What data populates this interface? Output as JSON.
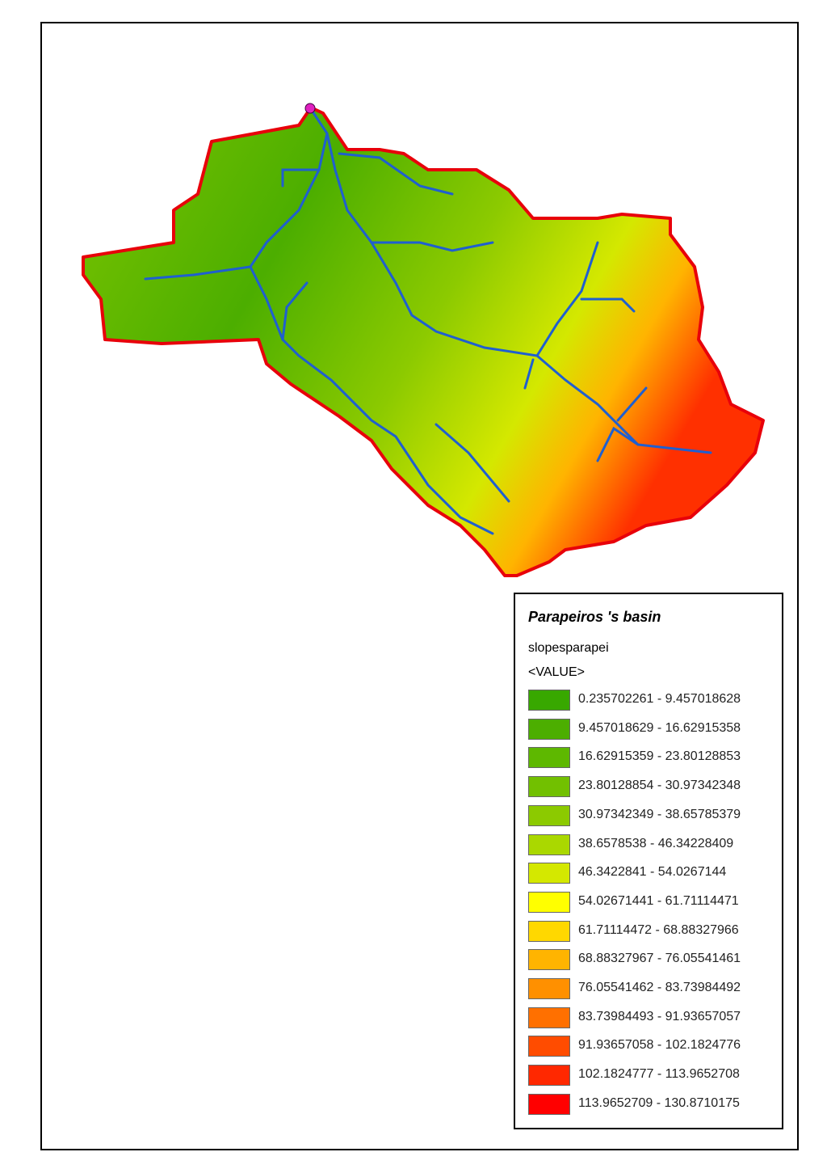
{
  "legend": {
    "title": "Parapeiros 's basin",
    "field": "slopesparapei",
    "value_header": "<VALUE>",
    "classes": [
      {
        "label": "0.235702261 - 9.457018628",
        "color": "#38a800"
      },
      {
        "label": "9.457018629 - 16.62915358",
        "color": "#4cae00"
      },
      {
        "label": "16.62915359 - 23.80128853",
        "color": "#5eb800"
      },
      {
        "label": "23.80128854 - 30.97342348",
        "color": "#72c000"
      },
      {
        "label": "30.97342349 - 38.65785379",
        "color": "#8cca00"
      },
      {
        "label": "38.6578538 - 46.34228409",
        "color": "#aad800"
      },
      {
        "label": "46.3422841 - 54.0267144",
        "color": "#d4e800"
      },
      {
        "label": "54.02671441 - 61.71114471",
        "color": "#ffff00"
      },
      {
        "label": "61.71114472 - 68.88327966",
        "color": "#ffd800"
      },
      {
        "label": "68.88327967 - 76.05541461",
        "color": "#ffb400"
      },
      {
        "label": "76.05541462 - 83.73984492",
        "color": "#ff9000"
      },
      {
        "label": "83.73984493 - 91.93657057",
        "color": "#ff7000"
      },
      {
        "label": "91.93657058 - 102.1824776",
        "color": "#ff4c00"
      },
      {
        "label": "102.1824777 - 113.9652708",
        "color": "#ff2800"
      },
      {
        "label": "113.9652709 - 130.8710175",
        "color": "#ff0000"
      }
    ]
  }
}
